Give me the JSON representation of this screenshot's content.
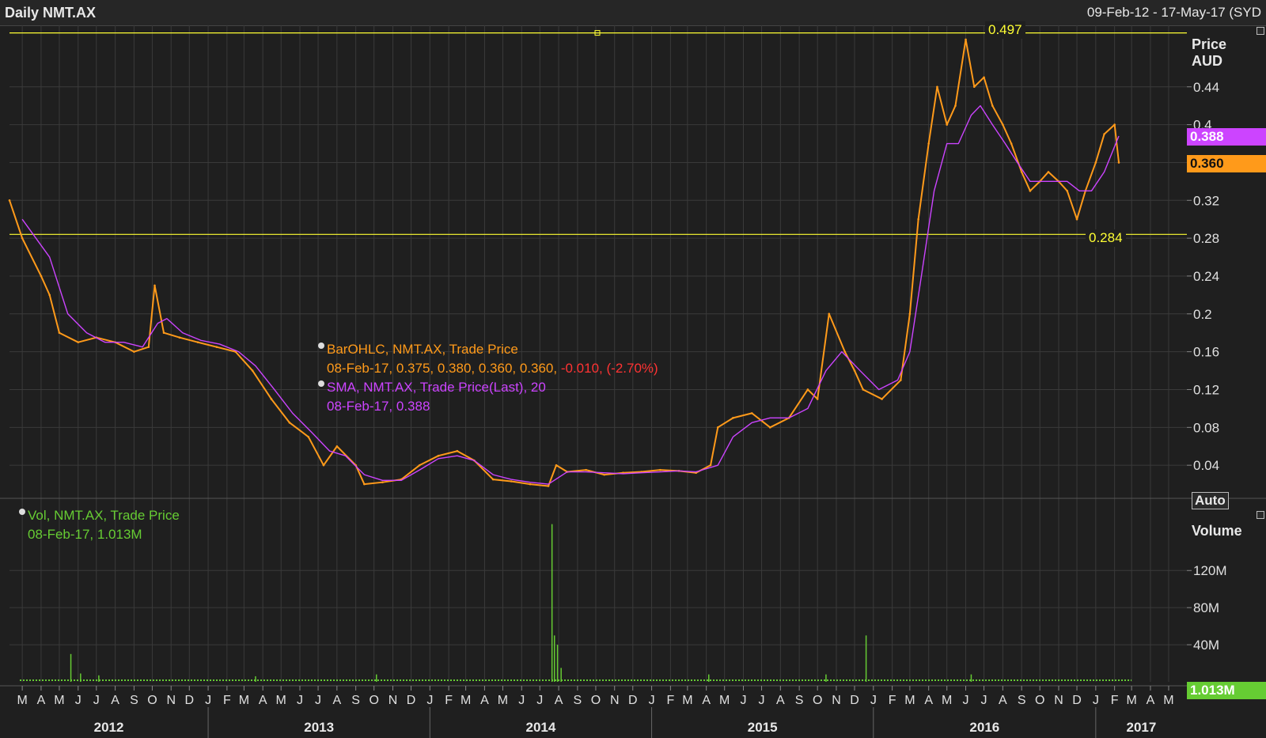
{
  "header": {
    "title": "Daily NMT.AX",
    "date_range": "09-Feb-12 - 17-May-17 (SYD"
  },
  "legend": {
    "bar_title": "BarOHLC, NMT.AX, Trade Price",
    "bar_values": "08-Feb-17, 0.375, 0.380, 0.360, 0.360,",
    "bar_change": "-0.010, (-2.70%)",
    "sma_title": "SMA, NMT.AX, Trade Price(Last),  20",
    "sma_values": "08-Feb-17, 0.388",
    "vol_title": "Vol, NMT.AX, Trade Price",
    "vol_values": "08-Feb-17, 1.013M"
  },
  "price_axis": {
    "title_line1": "Price",
    "title_line2": "AUD",
    "auto_label": "Auto"
  },
  "volume_axis": {
    "title": "Volume"
  },
  "tags": {
    "sma": "0.388",
    "last": "0.360",
    "volume": "1.013M",
    "high": "0.497",
    "low": "0.284"
  },
  "colors": {
    "price": "#ff9a1a",
    "sma": "#cc44ff",
    "volume": "#66cc33",
    "level": "#ffff33",
    "down": "#ff3333",
    "grid": "#3a3a3a"
  },
  "chart_data": [
    {
      "type": "line",
      "title": "Daily NMT.AX",
      "ylabel": "Price AUD",
      "x_unit": "date",
      "xlim": [
        "2012-02-09",
        "2017-05-31"
      ],
      "ylim": [
        0,
        0.5
      ],
      "y_ticks": [
        "0.04",
        "0.08",
        "0.12",
        "0.16",
        "0.2",
        "0.24",
        "0.28",
        "0.32",
        "0.36",
        "0.4",
        "0.44"
      ],
      "levels": [
        0.497,
        0.284
      ],
      "series": [
        {
          "name": "BarOHLC, NMT.AX, Trade Price",
          "x": [
            "2012-02-09",
            "2012-03-01",
            "2012-04-01",
            "2012-04-15",
            "2012-05-01",
            "2012-06-01",
            "2012-07-01",
            "2012-08-01",
            "2012-09-01",
            "2012-09-25",
            "2012-10-05",
            "2012-10-20",
            "2012-11-15",
            "2012-12-15",
            "2013-01-15",
            "2013-02-15",
            "2013-03-15",
            "2013-04-15",
            "2013-05-15",
            "2013-06-15",
            "2013-07-10",
            "2013-08-01",
            "2013-09-01",
            "2013-09-15",
            "2013-10-15",
            "2013-11-15",
            "2013-12-15",
            "2014-01-15",
            "2014-02-15",
            "2014-03-15",
            "2014-04-15",
            "2014-05-15",
            "2014-06-15",
            "2014-07-15",
            "2014-07-28",
            "2014-08-15",
            "2014-09-15",
            "2014-10-15",
            "2014-11-15",
            "2014-12-15",
            "2015-01-15",
            "2015-02-15",
            "2015-03-15",
            "2015-04-08",
            "2015-04-20",
            "2015-05-15",
            "2015-06-15",
            "2015-07-15",
            "2015-08-15",
            "2015-09-15",
            "2015-10-01",
            "2015-10-20",
            "2015-11-15",
            "2015-12-01",
            "2015-12-15",
            "2016-01-15",
            "2016-02-15",
            "2016-03-01",
            "2016-03-15",
            "2016-04-01",
            "2016-04-15",
            "2016-05-01",
            "2016-05-15",
            "2016-06-01",
            "2016-06-15",
            "2016-07-01",
            "2016-07-15",
            "2016-08-01",
            "2016-08-15",
            "2016-09-01",
            "2016-09-15",
            "2016-10-01",
            "2016-10-15",
            "2016-11-01",
            "2016-11-15",
            "2016-12-01",
            "2016-12-15",
            "2017-01-01",
            "2017-01-15",
            "2017-02-01",
            "2017-02-08"
          ],
          "values": [
            0.32,
            0.28,
            0.24,
            0.22,
            0.18,
            0.17,
            0.175,
            0.17,
            0.16,
            0.165,
            0.23,
            0.18,
            0.175,
            0.17,
            0.165,
            0.16,
            0.14,
            0.11,
            0.085,
            0.07,
            0.04,
            0.06,
            0.04,
            0.02,
            0.022,
            0.025,
            0.04,
            0.05,
            0.055,
            0.045,
            0.025,
            0.023,
            0.02,
            0.018,
            0.04,
            0.033,
            0.035,
            0.03,
            0.032,
            0.033,
            0.035,
            0.034,
            0.032,
            0.04,
            0.08,
            0.09,
            0.095,
            0.08,
            0.09,
            0.12,
            0.11,
            0.2,
            0.16,
            0.14,
            0.12,
            0.11,
            0.13,
            0.2,
            0.3,
            0.38,
            0.44,
            0.4,
            0.42,
            0.49,
            0.44,
            0.45,
            0.42,
            0.4,
            0.38,
            0.35,
            0.33,
            0.34,
            0.35,
            0.34,
            0.33,
            0.3,
            0.33,
            0.36,
            0.39,
            0.4,
            0.36
          ]
        },
        {
          "name": "SMA, NMT.AX, Trade Price(Last),  20",
          "x": [
            "2012-03-01",
            "2012-04-15",
            "2012-05-15",
            "2012-06-15",
            "2012-07-15",
            "2012-08-15",
            "2012-09-15",
            "2012-10-10",
            "2012-10-25",
            "2012-11-20",
            "2012-12-20",
            "2013-01-20",
            "2013-02-20",
            "2013-03-20",
            "2013-04-20",
            "2013-05-20",
            "2013-06-20",
            "2013-07-20",
            "2013-08-15",
            "2013-09-15",
            "2013-10-15",
            "2013-11-15",
            "2013-12-15",
            "2014-01-15",
            "2014-02-15",
            "2014-03-15",
            "2014-04-15",
            "2014-05-15",
            "2014-06-15",
            "2014-07-15",
            "2014-08-15",
            "2014-09-15",
            "2014-10-15",
            "2014-11-15",
            "2014-12-15",
            "2015-01-15",
            "2015-02-15",
            "2015-03-15",
            "2015-04-20",
            "2015-05-15",
            "2015-06-15",
            "2015-07-15",
            "2015-08-15",
            "2015-09-15",
            "2015-10-15",
            "2015-11-10",
            "2015-12-10",
            "2016-01-10",
            "2016-02-10",
            "2016-03-01",
            "2016-03-20",
            "2016-04-10",
            "2016-05-01",
            "2016-05-20",
            "2016-06-10",
            "2016-06-25",
            "2016-07-15",
            "2016-08-05",
            "2016-08-25",
            "2016-09-15",
            "2016-10-05",
            "2016-10-25",
            "2016-11-15",
            "2016-12-05",
            "2016-12-25",
            "2017-01-15",
            "2017-02-08"
          ],
          "values": [
            0.3,
            0.26,
            0.2,
            0.18,
            0.17,
            0.17,
            0.165,
            0.19,
            0.195,
            0.18,
            0.172,
            0.168,
            0.16,
            0.145,
            0.12,
            0.095,
            0.075,
            0.055,
            0.05,
            0.03,
            0.024,
            0.024,
            0.035,
            0.047,
            0.05,
            0.045,
            0.03,
            0.025,
            0.022,
            0.02,
            0.033,
            0.033,
            0.032,
            0.031,
            0.032,
            0.033,
            0.034,
            0.033,
            0.04,
            0.07,
            0.085,
            0.09,
            0.09,
            0.1,
            0.14,
            0.16,
            0.14,
            0.12,
            0.13,
            0.16,
            0.24,
            0.33,
            0.38,
            0.38,
            0.41,
            0.42,
            0.4,
            0.38,
            0.36,
            0.34,
            0.34,
            0.34,
            0.34,
            0.33,
            0.33,
            0.35,
            0.388
          ]
        }
      ]
    },
    {
      "type": "bar",
      "title": "Vol, NMT.AX, Trade Price",
      "ylabel": "Volume",
      "x_unit": "date",
      "xlim": [
        "2012-02-09",
        "2017-05-31"
      ],
      "ylim": [
        0,
        185000000
      ],
      "y_ticks": [
        "40M",
        "80M",
        "120M"
      ],
      "series": [
        {
          "name": "Vol, NMT.AX, Trade Price",
          "x": [
            "2012-05-20",
            "2012-06-05",
            "2012-07-05",
            "2013-03-20",
            "2013-10-05",
            "2014-07-21",
            "2014-07-25",
            "2014-07-30",
            "2014-08-05",
            "2015-04-05",
            "2015-10-15",
            "2015-12-20",
            "2016-06-10"
          ],
          "values": [
            30000000,
            9000000,
            7000000,
            6000000,
            8000000,
            170000000,
            50000000,
            40000000,
            15000000,
            8000000,
            8000000,
            50000000,
            8000000
          ]
        }
      ]
    }
  ],
  "time_axis": {
    "month_labels": [
      "M",
      "A",
      "M",
      "J",
      "J",
      "A",
      "S",
      "O",
      "N",
      "D",
      "J",
      "F",
      "M",
      "A",
      "M",
      "J",
      "J",
      "A",
      "S",
      "O",
      "N",
      "D",
      "J",
      "F",
      "M",
      "A",
      "M",
      "J",
      "J",
      "A",
      "S",
      "O",
      "N",
      "D",
      "J",
      "F",
      "M",
      "A",
      "M",
      "J",
      "J",
      "A",
      "S",
      "O",
      "N",
      "D",
      "J",
      "F",
      "M",
      "A",
      "M",
      "J",
      "J",
      "A",
      "S",
      "O",
      "N",
      "D",
      "J",
      "F",
      "M",
      "A",
      "M"
    ],
    "year_labels": [
      "2012",
      "2013",
      "2014",
      "2015",
      "2016",
      "2017"
    ]
  }
}
